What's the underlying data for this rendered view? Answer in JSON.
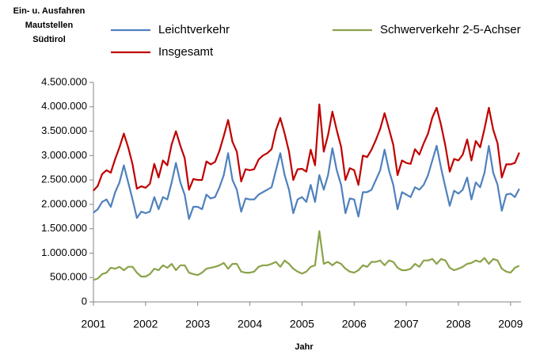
{
  "chart_data": {
    "type": "line",
    "title": [
      "Ein-  u. Ausfahren",
      "Mautstellen",
      "Südtirol"
    ],
    "xlabel": "Jahr",
    "x": [
      2001,
      2001.083,
      2001.167,
      2001.25,
      2001.333,
      2001.417,
      2001.5,
      2001.583,
      2001.667,
      2001.75,
      2001.833,
      2001.917,
      2002,
      2002.083,
      2002.167,
      2002.25,
      2002.333,
      2002.417,
      2002.5,
      2002.583,
      2002.667,
      2002.75,
      2002.833,
      2002.917,
      2003,
      2003.083,
      2003.167,
      2003.25,
      2003.333,
      2003.417,
      2003.5,
      2003.583,
      2003.667,
      2003.75,
      2003.833,
      2003.917,
      2004,
      2004.083,
      2004.167,
      2004.25,
      2004.333,
      2004.417,
      2004.5,
      2004.583,
      2004.667,
      2004.75,
      2004.833,
      2004.917,
      2005,
      2005.083,
      2005.167,
      2005.25,
      2005.333,
      2005.417,
      2005.5,
      2005.583,
      2005.667,
      2005.75,
      2005.833,
      2005.917,
      2006,
      2006.083,
      2006.167,
      2006.25,
      2006.333,
      2006.417,
      2006.5,
      2006.583,
      2006.667,
      2006.75,
      2006.833,
      2006.917,
      2007,
      2007.083,
      2007.167,
      2007.25,
      2007.333,
      2007.417,
      2007.5,
      2007.583,
      2007.667,
      2007.75,
      2007.833,
      2007.917,
      2008,
      2008.083,
      2008.167,
      2008.25,
      2008.333,
      2008.417,
      2008.5,
      2008.583,
      2008.667,
      2008.75,
      2008.833,
      2008.917,
      2009,
      2009.083,
      2009.167
    ],
    "series": [
      {
        "name": "Leichtverkehr",
        "color": "#4f81bd",
        "values": [
          1830000,
          1900000,
          2050000,
          2100000,
          1950000,
          2250000,
          2450000,
          2800000,
          2450000,
          2100000,
          1720000,
          1850000,
          1820000,
          1850000,
          2150000,
          1900000,
          2150000,
          2100000,
          2450000,
          2850000,
          2450000,
          2200000,
          1700000,
          1950000,
          1950000,
          1900000,
          2200000,
          2120000,
          2150000,
          2350000,
          2600000,
          3050000,
          2500000,
          2300000,
          1850000,
          2120000,
          2100000,
          2100000,
          2200000,
          2250000,
          2300000,
          2350000,
          2700000,
          3050000,
          2600000,
          2300000,
          1820000,
          2100000,
          2150000,
          2050000,
          2400000,
          2050000,
          2600000,
          2300000,
          2600000,
          3150000,
          2700000,
          2400000,
          1820000,
          2120000,
          2100000,
          1750000,
          2250000,
          2250000,
          2300000,
          2500000,
          2700000,
          3120000,
          2700000,
          2400000,
          1900000,
          2250000,
          2200000,
          2150000,
          2350000,
          2300000,
          2400000,
          2600000,
          2900000,
          3200000,
          2750000,
          2350000,
          1970000,
          2280000,
          2220000,
          2300000,
          2550000,
          2100000,
          2450000,
          2350000,
          2650000,
          3200000,
          2650000,
          2400000,
          1870000,
          2200000,
          2220000,
          2150000,
          2320000
        ]
      },
      {
        "name": "Insgesamt",
        "color": "#c00000",
        "values": [
          2280000,
          2380000,
          2620000,
          2700000,
          2650000,
          2930000,
          3170000,
          3450000,
          3170000,
          2820000,
          2320000,
          2370000,
          2340000,
          2420000,
          2830000,
          2550000,
          2900000,
          2800000,
          3230000,
          3500000,
          3200000,
          2950000,
          2300000,
          2520000,
          2500000,
          2500000,
          2880000,
          2820000,
          2870000,
          3100000,
          3400000,
          3730000,
          3280000,
          3080000,
          2470000,
          2720000,
          2700000,
          2720000,
          2920000,
          3000000,
          3050000,
          3130000,
          3520000,
          3770000,
          3450000,
          3080000,
          2500000,
          2720000,
          2730000,
          2670000,
          3120000,
          2800000,
          4050000,
          3080000,
          3420000,
          3900000,
          3520000,
          3180000,
          2500000,
          2740000,
          2700000,
          2400000,
          3000000,
          2970000,
          3120000,
          3320000,
          3550000,
          3870000,
          3550000,
          3220000,
          2600000,
          2900000,
          2850000,
          2830000,
          3130000,
          3020000,
          3250000,
          3450000,
          3780000,
          3980000,
          3630000,
          3200000,
          2670000,
          2930000,
          2900000,
          3020000,
          3330000,
          2900000,
          3300000,
          3170000,
          3550000,
          3980000,
          3530000,
          3250000,
          2550000,
          2820000,
          2820000,
          2850000,
          3060000
        ]
      },
      {
        "name": "Schwerverkehr 2-5-Achser",
        "color": "#8aa34a",
        "values": [
          450000,
          480000,
          570000,
          600000,
          700000,
          680000,
          720000,
          650000,
          720000,
          720000,
          600000,
          520000,
          520000,
          570000,
          680000,
          650000,
          750000,
          700000,
          780000,
          650000,
          750000,
          750000,
          600000,
          570000,
          550000,
          600000,
          680000,
          700000,
          720000,
          750000,
          800000,
          680000,
          780000,
          780000,
          620000,
          600000,
          600000,
          620000,
          720000,
          750000,
          750000,
          780000,
          820000,
          720000,
          850000,
          780000,
          680000,
          620000,
          580000,
          620000,
          720000,
          750000,
          1450000,
          780000,
          820000,
          750000,
          820000,
          780000,
          680000,
          620000,
          600000,
          650000,
          750000,
          720000,
          820000,
          820000,
          850000,
          750000,
          850000,
          820000,
          700000,
          650000,
          650000,
          680000,
          780000,
          720000,
          850000,
          850000,
          880000,
          780000,
          880000,
          850000,
          700000,
          650000,
          680000,
          720000,
          780000,
          800000,
          850000,
          820000,
          900000,
          780000,
          880000,
          850000,
          680000,
          620000,
          600000,
          700000,
          740000
        ]
      }
    ],
    "xlim": [
      2001,
      2009.2
    ],
    "xticks": [
      2001,
      2002,
      2003,
      2004,
      2005,
      2006,
      2007,
      2008,
      2009
    ],
    "ylim": [
      0,
      4500000
    ],
    "yticks": [
      0,
      {
        "value": 500000,
        "label": "500.000"
      },
      {
        "value": 1000000,
        "label": "1.000.000"
      },
      {
        "value": 1500000,
        "label": "1.500.000"
      },
      {
        "value": 2000000,
        "label": "2.000.000"
      },
      {
        "value": 2500000,
        "label": "2.500.000"
      },
      {
        "value": 3000000,
        "label": "3.000.000"
      },
      {
        "value": 3500000,
        "label": "3.500.000"
      },
      {
        "value": 4000000,
        "label": "4.000.000"
      },
      {
        "value": 4500000,
        "label": "4.500.000"
      }
    ],
    "grid": false
  }
}
